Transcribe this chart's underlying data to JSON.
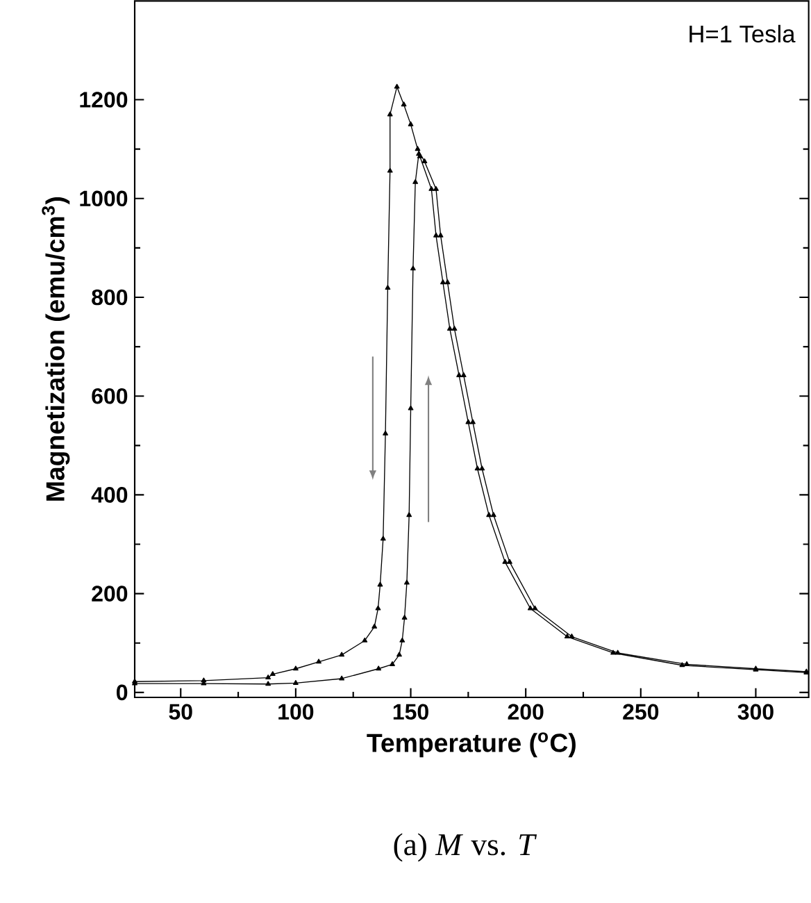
{
  "chart_data": {
    "type": "line",
    "title": "(a) *M* vs. *T*",
    "xlabel": "Temperature ($^{o}$C)",
    "ylabel": "Magnetization (emu/cm$^{3}$)",
    "annotations": [
      "H=1 Tesla"
    ],
    "xlim": [
      30,
      323
    ],
    "ylim": [
      -10,
      1400
    ],
    "xticks": [
      50,
      100,
      150,
      200,
      250,
      300
    ],
    "yticks": [
      0,
      200,
      400,
      600,
      800,
      1000,
      1200
    ],
    "marker": "triangle",
    "line_style": "solid",
    "series": [
      {
        "color": "#000000",
        "x": [
          322,
          300,
          270,
          240,
          220,
          204,
          193,
          186,
          181,
          177,
          173,
          169,
          166,
          163,
          161,
          156,
          153,
          150,
          147,
          144,
          141,
          141,
          140,
          139,
          138,
          136.7,
          135.8,
          134.2,
          130,
          120,
          110,
          100,
          90,
          88,
          60,
          30
        ],
        "values": [
          42,
          48,
          57,
          80,
          113,
          170,
          264,
          359,
          453,
          547,
          642,
          736,
          830,
          925,
          1019,
          1075,
          1100,
          1150,
          1190,
          1226,
          1170,
          1056,
          819,
          524,
          311,
          218,
          170,
          133,
          105,
          76,
          62,
          48,
          37,
          30,
          24,
          22
        ]
      },
      {
        "color": "#000000",
        "x": [
          30,
          60,
          88,
          100,
          120,
          136,
          142,
          145,
          146.3,
          147.3,
          148.3,
          149.3,
          150,
          151,
          152,
          153.5,
          154,
          159,
          161,
          164,
          167,
          171,
          175,
          179,
          184,
          191,
          202,
          218,
          238,
          268,
          300,
          322
        ],
        "values": [
          18,
          18,
          17,
          19,
          28,
          48,
          57,
          76,
          105,
          151,
          222,
          359,
          575,
          858,
          1033,
          1090,
          1085,
          1019,
          925,
          830,
          736,
          642,
          547,
          453,
          359,
          264,
          170,
          113,
          80,
          55,
          46,
          40
        ]
      }
    ]
  }
}
